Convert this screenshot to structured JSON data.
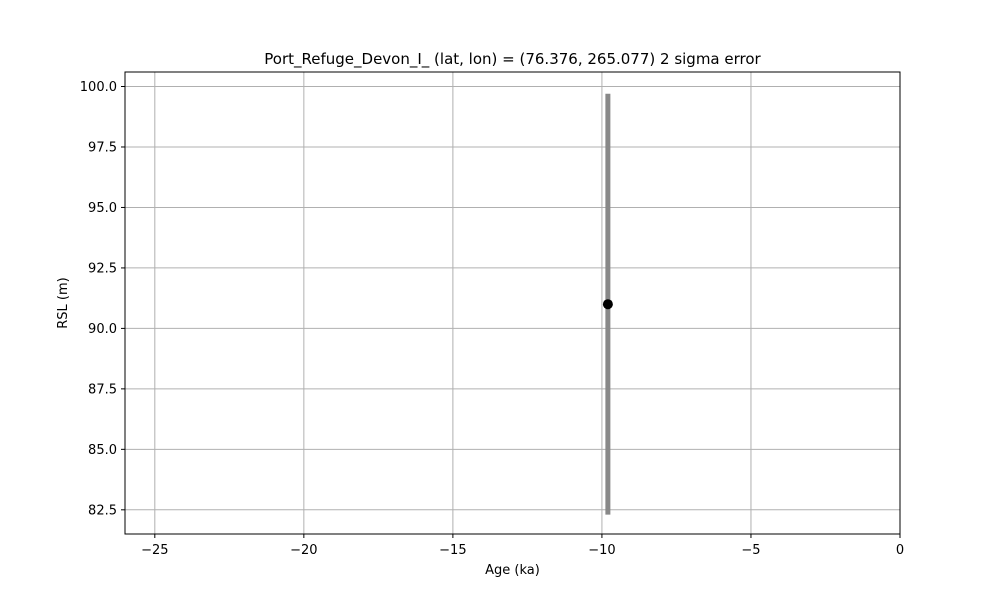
{
  "chart_data": {
    "type": "scatter",
    "title": "Port_Refuge_Devon_I_ (lat, lon) = (76.376, 265.077)  2 sigma error",
    "xlabel": "Age (ka)",
    "ylabel": "RSL (m)",
    "xlim": [
      -26,
      0
    ],
    "ylim": [
      81.5,
      100.6
    ],
    "xticks": [
      -25,
      -20,
      -15,
      -10,
      -5,
      0
    ],
    "xtick_labels": [
      "−25",
      "−20",
      "−15",
      "−10",
      "−5",
      "0"
    ],
    "yticks": [
      82.5,
      85.0,
      87.5,
      90.0,
      92.5,
      95.0,
      97.5,
      100.0
    ],
    "ytick_labels": [
      "82.5",
      "85.0",
      "87.5",
      "90.0",
      "92.5",
      "95.0",
      "97.5",
      "100.0"
    ],
    "grid": true,
    "points": [
      {
        "x": -9.8,
        "y": 91.0,
        "y_err_low": 82.3,
        "y_err_high": 99.7
      }
    ],
    "colors": {
      "point": "#000000",
      "error_bar": "#888888",
      "grid": "#b0b0b0",
      "axes": "#000000"
    }
  }
}
